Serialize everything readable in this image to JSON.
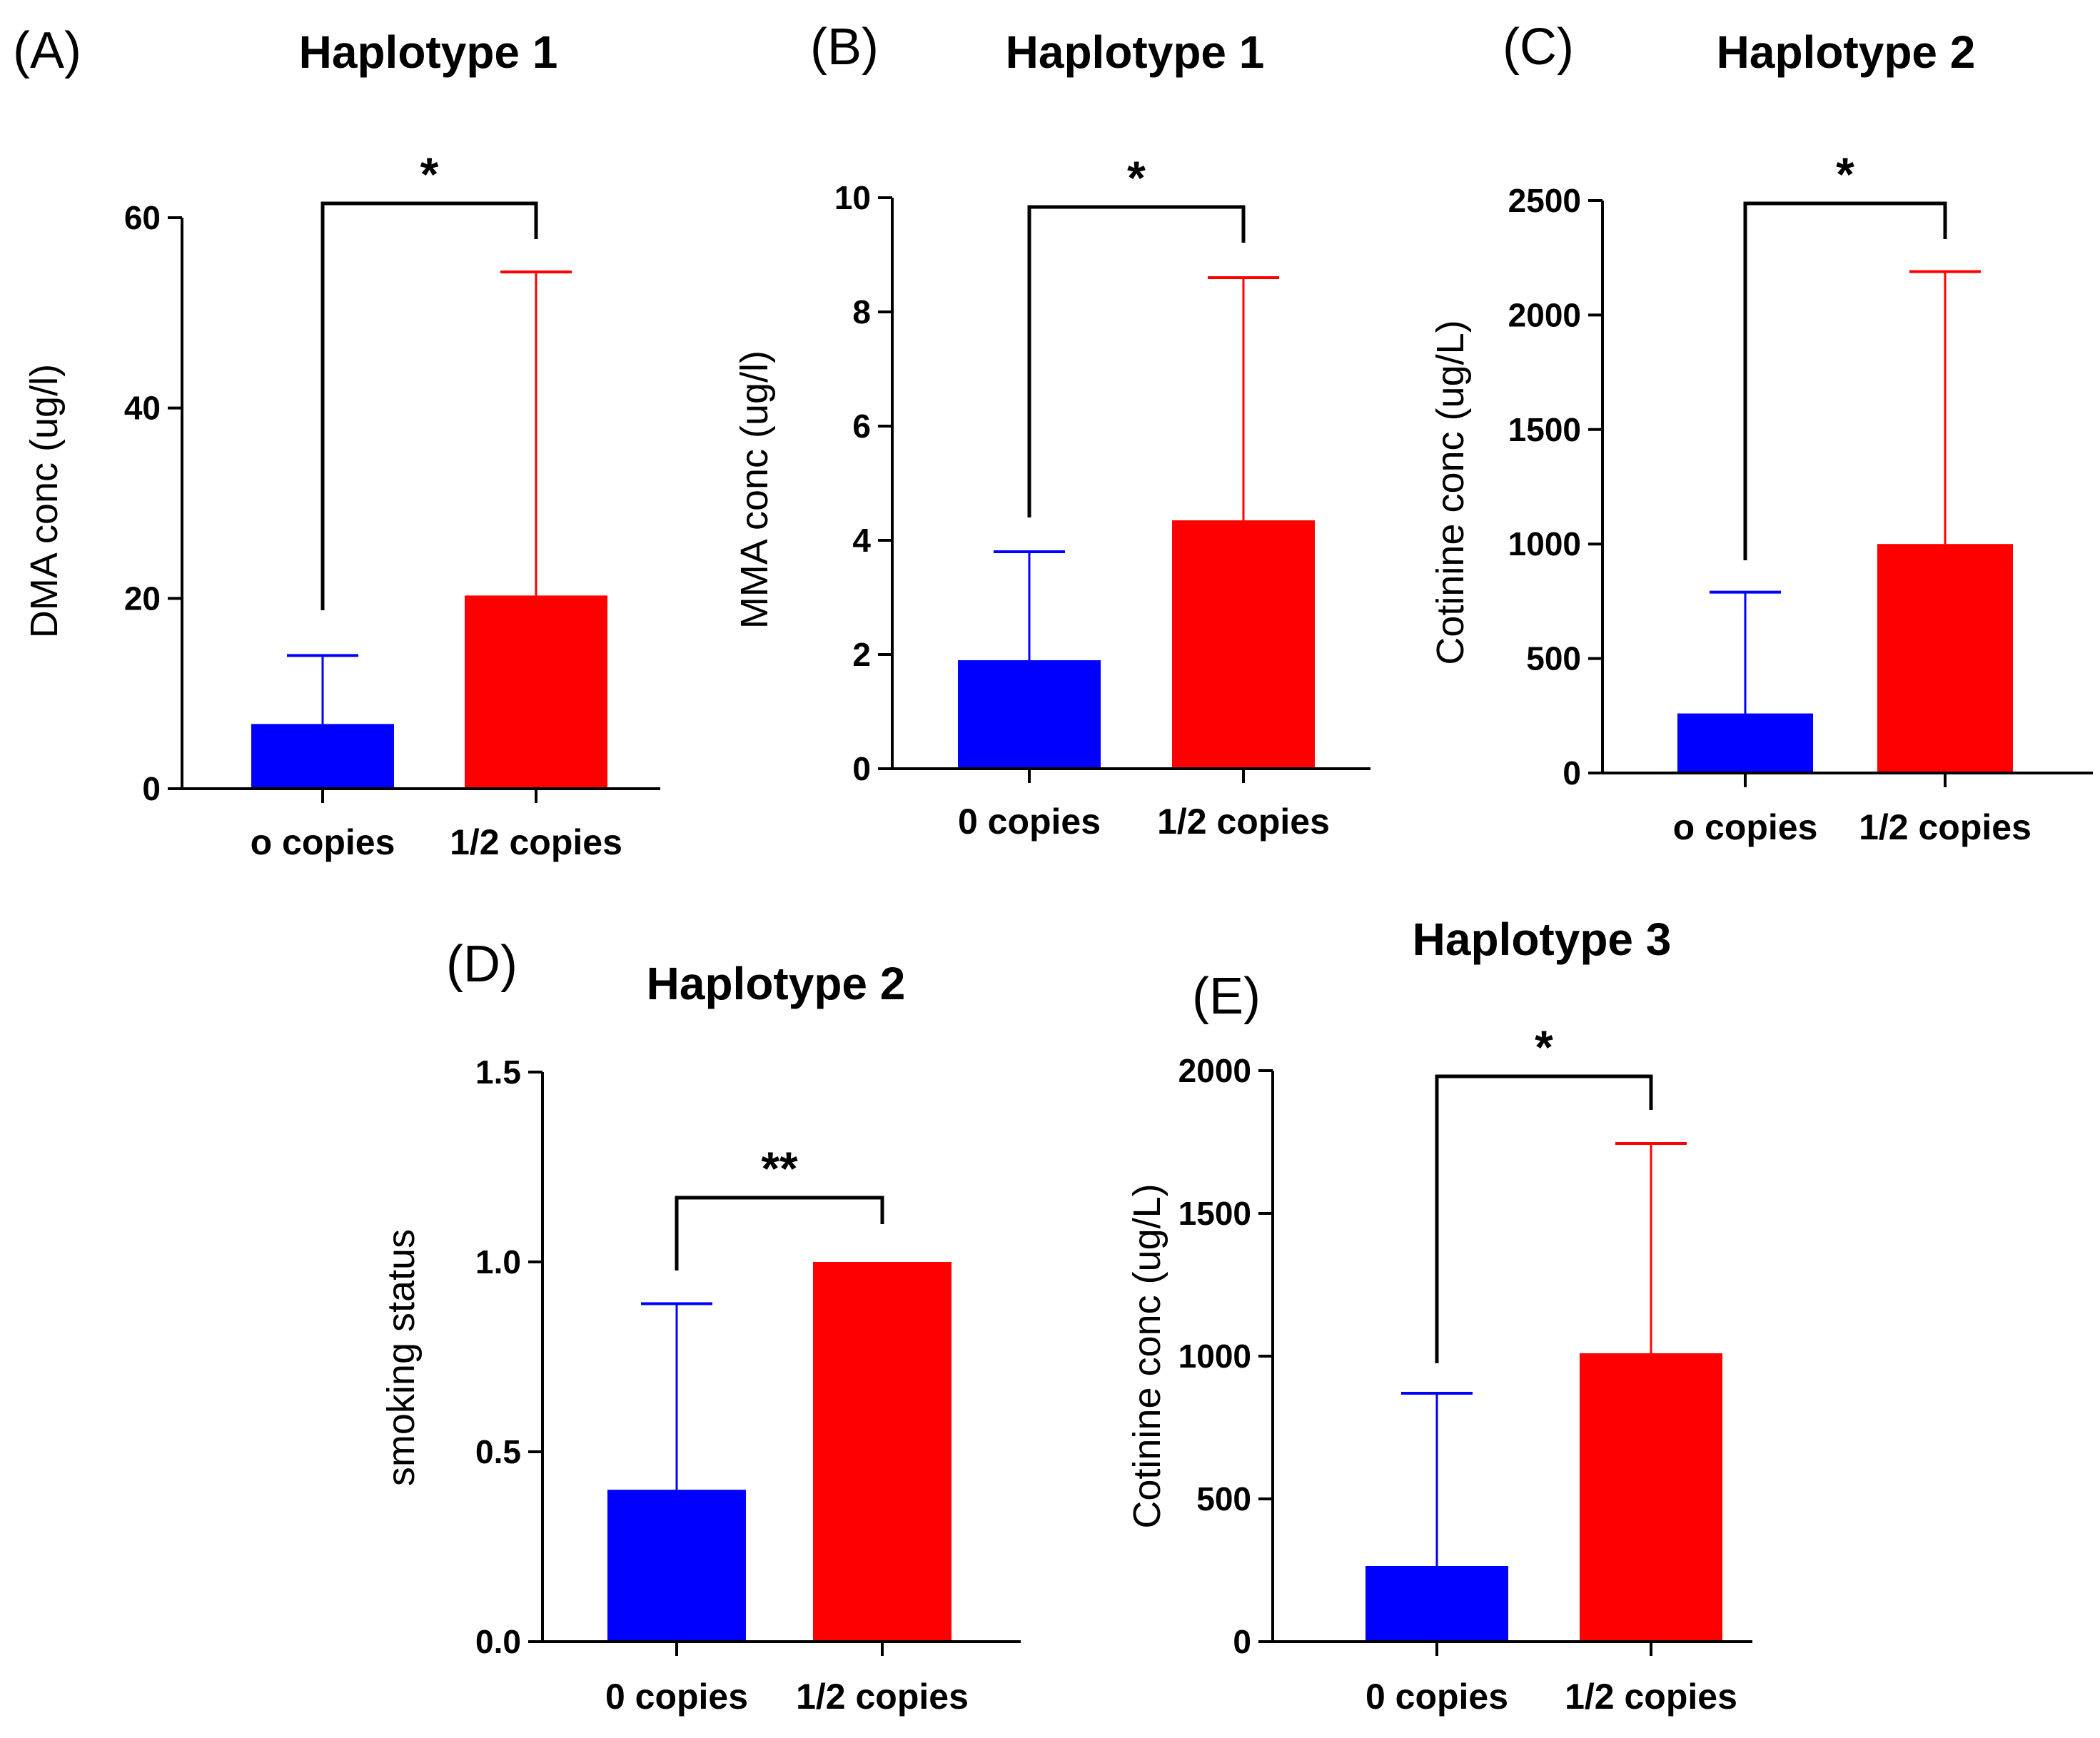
{
  "colors": {
    "blue": "#0000ff",
    "red": "#ff0000",
    "axis": "#000000"
  },
  "chart_data": [
    {
      "panel": "(A)",
      "type": "bar",
      "title": "Haplotype 1",
      "ylabel": "DMA conc (ug/l)",
      "categories": [
        "o copies",
        "1/2 copies"
      ],
      "values": [
        6.8,
        20.3
      ],
      "error_upper": [
        14.0,
        54.3
      ],
      "ylim": [
        0,
        60
      ],
      "yticks": [
        0,
        20,
        40,
        60
      ],
      "ytick_labels": [
        "0",
        "20",
        "40",
        "60"
      ],
      "significance": "*"
    },
    {
      "panel": "(B)",
      "type": "bar",
      "title": "Haplotype 1",
      "ylabel": "MMA conc (ug/l)",
      "categories": [
        "0 copies",
        "1/2 copies"
      ],
      "values": [
        1.9,
        4.35
      ],
      "error_upper": [
        3.8,
        8.6
      ],
      "ylim": [
        0,
        10
      ],
      "yticks": [
        0,
        2,
        4,
        6,
        8,
        10
      ],
      "ytick_labels": [
        "0",
        "2",
        "4",
        "6",
        "8",
        "10"
      ],
      "significance": "*"
    },
    {
      "panel": "(C)",
      "type": "bar",
      "title": "Haplotype 2",
      "ylabel": "Cotinine conc (ug/L)",
      "categories": [
        "o copies",
        "1/2 copies"
      ],
      "values": [
        260,
        1000
      ],
      "error_upper": [
        790,
        2190
      ],
      "ylim": [
        0,
        2500
      ],
      "yticks": [
        0,
        500,
        1000,
        1500,
        2000,
        2500
      ],
      "ytick_labels": [
        "0",
        "500",
        "1000",
        "1500",
        "2000",
        "2500"
      ],
      "significance": "*"
    },
    {
      "panel": "(D)",
      "type": "bar",
      "title": "Haplotype 2",
      "ylabel": "smoking status",
      "categories": [
        "0 copies",
        "1/2 copies"
      ],
      "values": [
        0.4,
        1.0
      ],
      "error_upper": [
        0.89,
        null
      ],
      "ylim": [
        0,
        1.5
      ],
      "yticks": [
        0,
        0.5,
        1.0,
        1.5
      ],
      "ytick_labels": [
        "0.0",
        "0.5",
        "1.0",
        "1.5"
      ],
      "significance": "**"
    },
    {
      "panel": "(E)",
      "type": "bar",
      "title": "Haplotype 3",
      "ylabel": "Cotinine conc (ug/L)",
      "categories": [
        "0 copies",
        "1/2 copies"
      ],
      "values": [
        265,
        1010
      ],
      "error_upper": [
        870,
        1745
      ],
      "ylim": [
        0,
        2000
      ],
      "yticks": [
        0,
        500,
        1000,
        1500,
        2000
      ],
      "ytick_labels": [
        "0",
        "500",
        "1000",
        "1500",
        "2000"
      ],
      "significance": "*"
    }
  ]
}
